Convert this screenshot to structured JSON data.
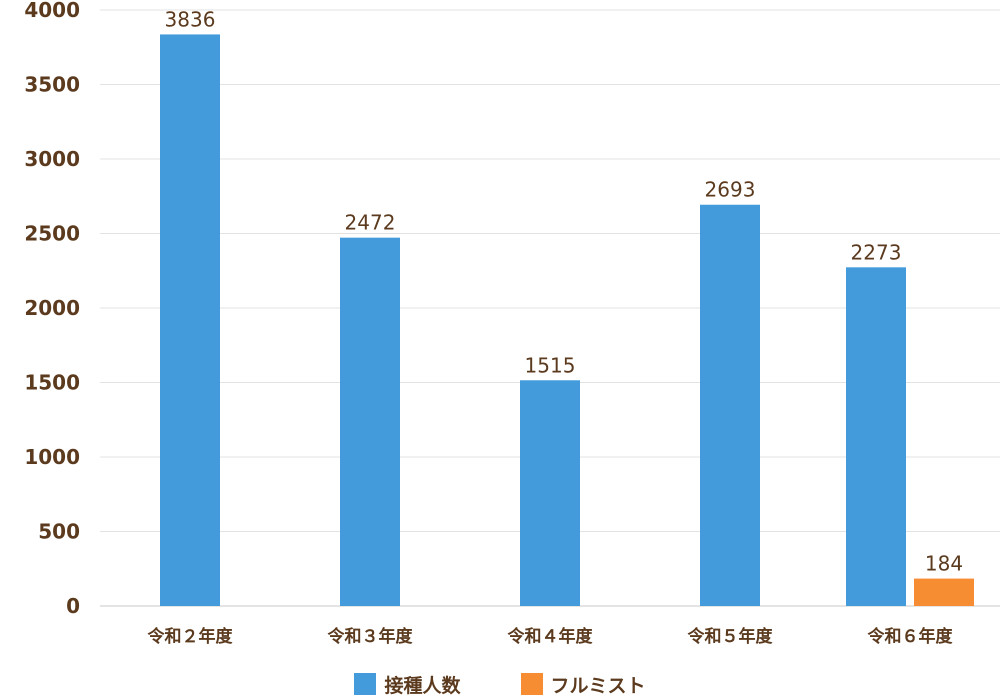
{
  "chart_data": {
    "type": "bar",
    "categories": [
      "令和２年度",
      "令和３年度",
      "令和４年度",
      "令和５年度",
      "令和６年度"
    ],
    "series": [
      {
        "name": "接種人数",
        "color": "#439bdb",
        "values": [
          3836,
          2472,
          1515,
          2693,
          2273
        ]
      },
      {
        "name": "フルミスト",
        "color": "#f78d33",
        "values": [
          null,
          null,
          null,
          null,
          184
        ]
      }
    ],
    "ylim": [
      0,
      4000
    ],
    "yticks": [
      0,
      500,
      1000,
      1500,
      2000,
      2500,
      3000,
      3500,
      4000
    ],
    "grid": true,
    "legend_position": "bottom"
  }
}
